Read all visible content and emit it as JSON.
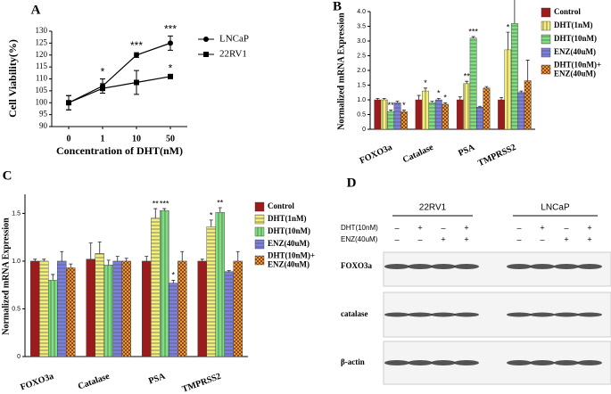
{
  "chart_data": [
    {
      "type": "line",
      "label": "A",
      "x_label": "Concentration of DHT(nM)",
      "y_label": "Cell Viability(%)",
      "categories": [
        "0",
        "1",
        "10",
        "50"
      ],
      "ylim": [
        90,
        130
      ],
      "yticks": [
        90,
        95,
        100,
        105,
        110,
        115,
        120,
        125,
        130
      ],
      "series": [
        {
          "name": "LNCaP",
          "color": "#000000",
          "marker": "circle",
          "values": [
            100,
            107,
            120,
            125
          ],
          "errors": [
            3,
            3,
            1,
            3
          ],
          "significance": [
            null,
            "*",
            "***",
            "***"
          ]
        },
        {
          "name": "22RV1",
          "color": "#000000",
          "marker": "square",
          "values": [
            100,
            106,
            108.5,
            111
          ],
          "errors": [
            3,
            2,
            5,
            0.5
          ],
          "significance": [
            null,
            null,
            null,
            "*"
          ]
        }
      ]
    },
    {
      "type": "bar",
      "label": "B",
      "y_label": "Normalized mRNA Expression",
      "categories": [
        "FOXO3a",
        "Catalase",
        "PSA",
        "TMPRSS2"
      ],
      "ylim": [
        0,
        4.0
      ],
      "yticks": [
        0,
        0.5,
        {
          "value": 1,
          "label": "1.0"
        },
        1.5,
        {
          "value": 2,
          "label": "2.0"
        },
        2.5,
        {
          "value": 3,
          "label": "3.0"
        },
        3.5,
        {
          "value": 4,
          "label": "4.0"
        }
      ],
      "legend": "right",
      "series": [
        {
          "name": "Control",
          "color": "#9b1c1c",
          "hatch": null,
          "values": [
            1.0,
            1.0,
            1.0,
            1.0
          ],
          "errors": [
            0.05,
            0.15,
            0.1,
            0.08
          ],
          "significance": [
            null,
            null,
            null,
            null
          ]
        },
        {
          "name": "DHT(1nM)",
          "color": "#f4ee7a",
          "hatch": "vertical",
          "values": [
            1.0,
            1.3,
            1.55,
            2.7
          ],
          "errors": [
            0.05,
            0.1,
            0.08,
            0.6
          ],
          "significance": [
            null,
            "*",
            "**",
            "*"
          ]
        },
        {
          "name": "DHT(10nM)",
          "color": "#7fe07f",
          "hatch": "horizontal",
          "values": [
            0.6,
            0.9,
            3.1,
            3.6
          ],
          "errors": [
            0.05,
            0.05,
            0.05,
            1.0
          ],
          "significance": [
            "**",
            null,
            "***",
            "*"
          ]
        },
        {
          "name": "ENZ(40uM)",
          "color": "#7b7fe0",
          "hatch": "horizontal",
          "values": [
            0.9,
            1.0,
            0.75,
            1.25
          ],
          "errors": [
            0.05,
            0.05,
            0.03,
            0.05
          ],
          "significance": [
            null,
            "*",
            null,
            null
          ]
        },
        {
          "name": "DHT(10nM)+ENZ(40uM)",
          "color": "#e8963c",
          "hatch": "checker",
          "values": [
            0.6,
            0.85,
            1.4,
            1.65
          ],
          "errors": [
            0.05,
            0.05,
            0.05,
            0.7
          ],
          "significance": [
            "*",
            "*",
            null,
            null
          ]
        }
      ]
    },
    {
      "type": "bar",
      "label": "C",
      "y_label": "Normalized mRNA Expression",
      "categories": [
        "FOXO3a",
        "Catalase",
        "PSA",
        "TMPRSS2"
      ],
      "ylim": [
        0,
        1.7
      ],
      "yticks": [
        0,
        0.5,
        {
          "value": 1,
          "label": "1.0"
        },
        1.5
      ],
      "legend": "right",
      "series": [
        {
          "name": "Control",
          "color": "#9b1c1c",
          "hatch": null,
          "values": [
            1.0,
            1.02,
            1.0,
            1.0
          ],
          "errors": [
            0.02,
            0.17,
            0.05,
            0.02
          ],
          "significance": [
            null,
            null,
            null,
            null
          ]
        },
        {
          "name": "DHT(1nM)",
          "color": "#f4ee7a",
          "hatch": "horizontal",
          "values": [
            1.0,
            1.08,
            1.45,
            1.36
          ],
          "errors": [
            0.02,
            0.12,
            0.1,
            0.07
          ],
          "significance": [
            null,
            null,
            "**",
            "*"
          ]
        },
        {
          "name": "DHT(10nM)",
          "color": "#7fe07f",
          "hatch": "vertical",
          "values": [
            0.8,
            0.96,
            1.53,
            1.51
          ],
          "errors": [
            0.06,
            0.05,
            0.02,
            0.05
          ],
          "significance": [
            null,
            null,
            "***",
            "**"
          ]
        },
        {
          "name": "ENZ(40uM)",
          "color": "#7b7fe0",
          "hatch": "horizontal",
          "values": [
            1.0,
            1.0,
            0.77,
            0.89
          ],
          "errors": [
            0.1,
            0.05,
            0.03,
            0.01
          ],
          "significance": [
            null,
            null,
            "*",
            null
          ]
        },
        {
          "name": "DHT(10nM)+ENZ(40uM)",
          "color": "#e8963c",
          "hatch": "checker",
          "values": [
            0.93,
            1.0,
            1.0,
            1.0
          ],
          "errors": [
            0.04,
            0.03,
            0.1,
            0.1
          ],
          "significance": [
            null,
            null,
            null,
            null
          ]
        }
      ]
    }
  ],
  "blot": {
    "label": "D",
    "groups": [
      "22RV1",
      "LNCaP"
    ],
    "treatments": [
      {
        "name": "DHT(10nM)",
        "signs": [
          "–",
          "+",
          "–",
          "+",
          "–",
          "+",
          "–",
          "+"
        ]
      },
      {
        "name": "ENZ(40uM)",
        "signs": [
          "–",
          "–",
          "+",
          "+",
          "–",
          "–",
          "+",
          "+"
        ]
      }
    ],
    "bands": [
      "FOXO3a",
      "catalase",
      "β-actin"
    ]
  }
}
